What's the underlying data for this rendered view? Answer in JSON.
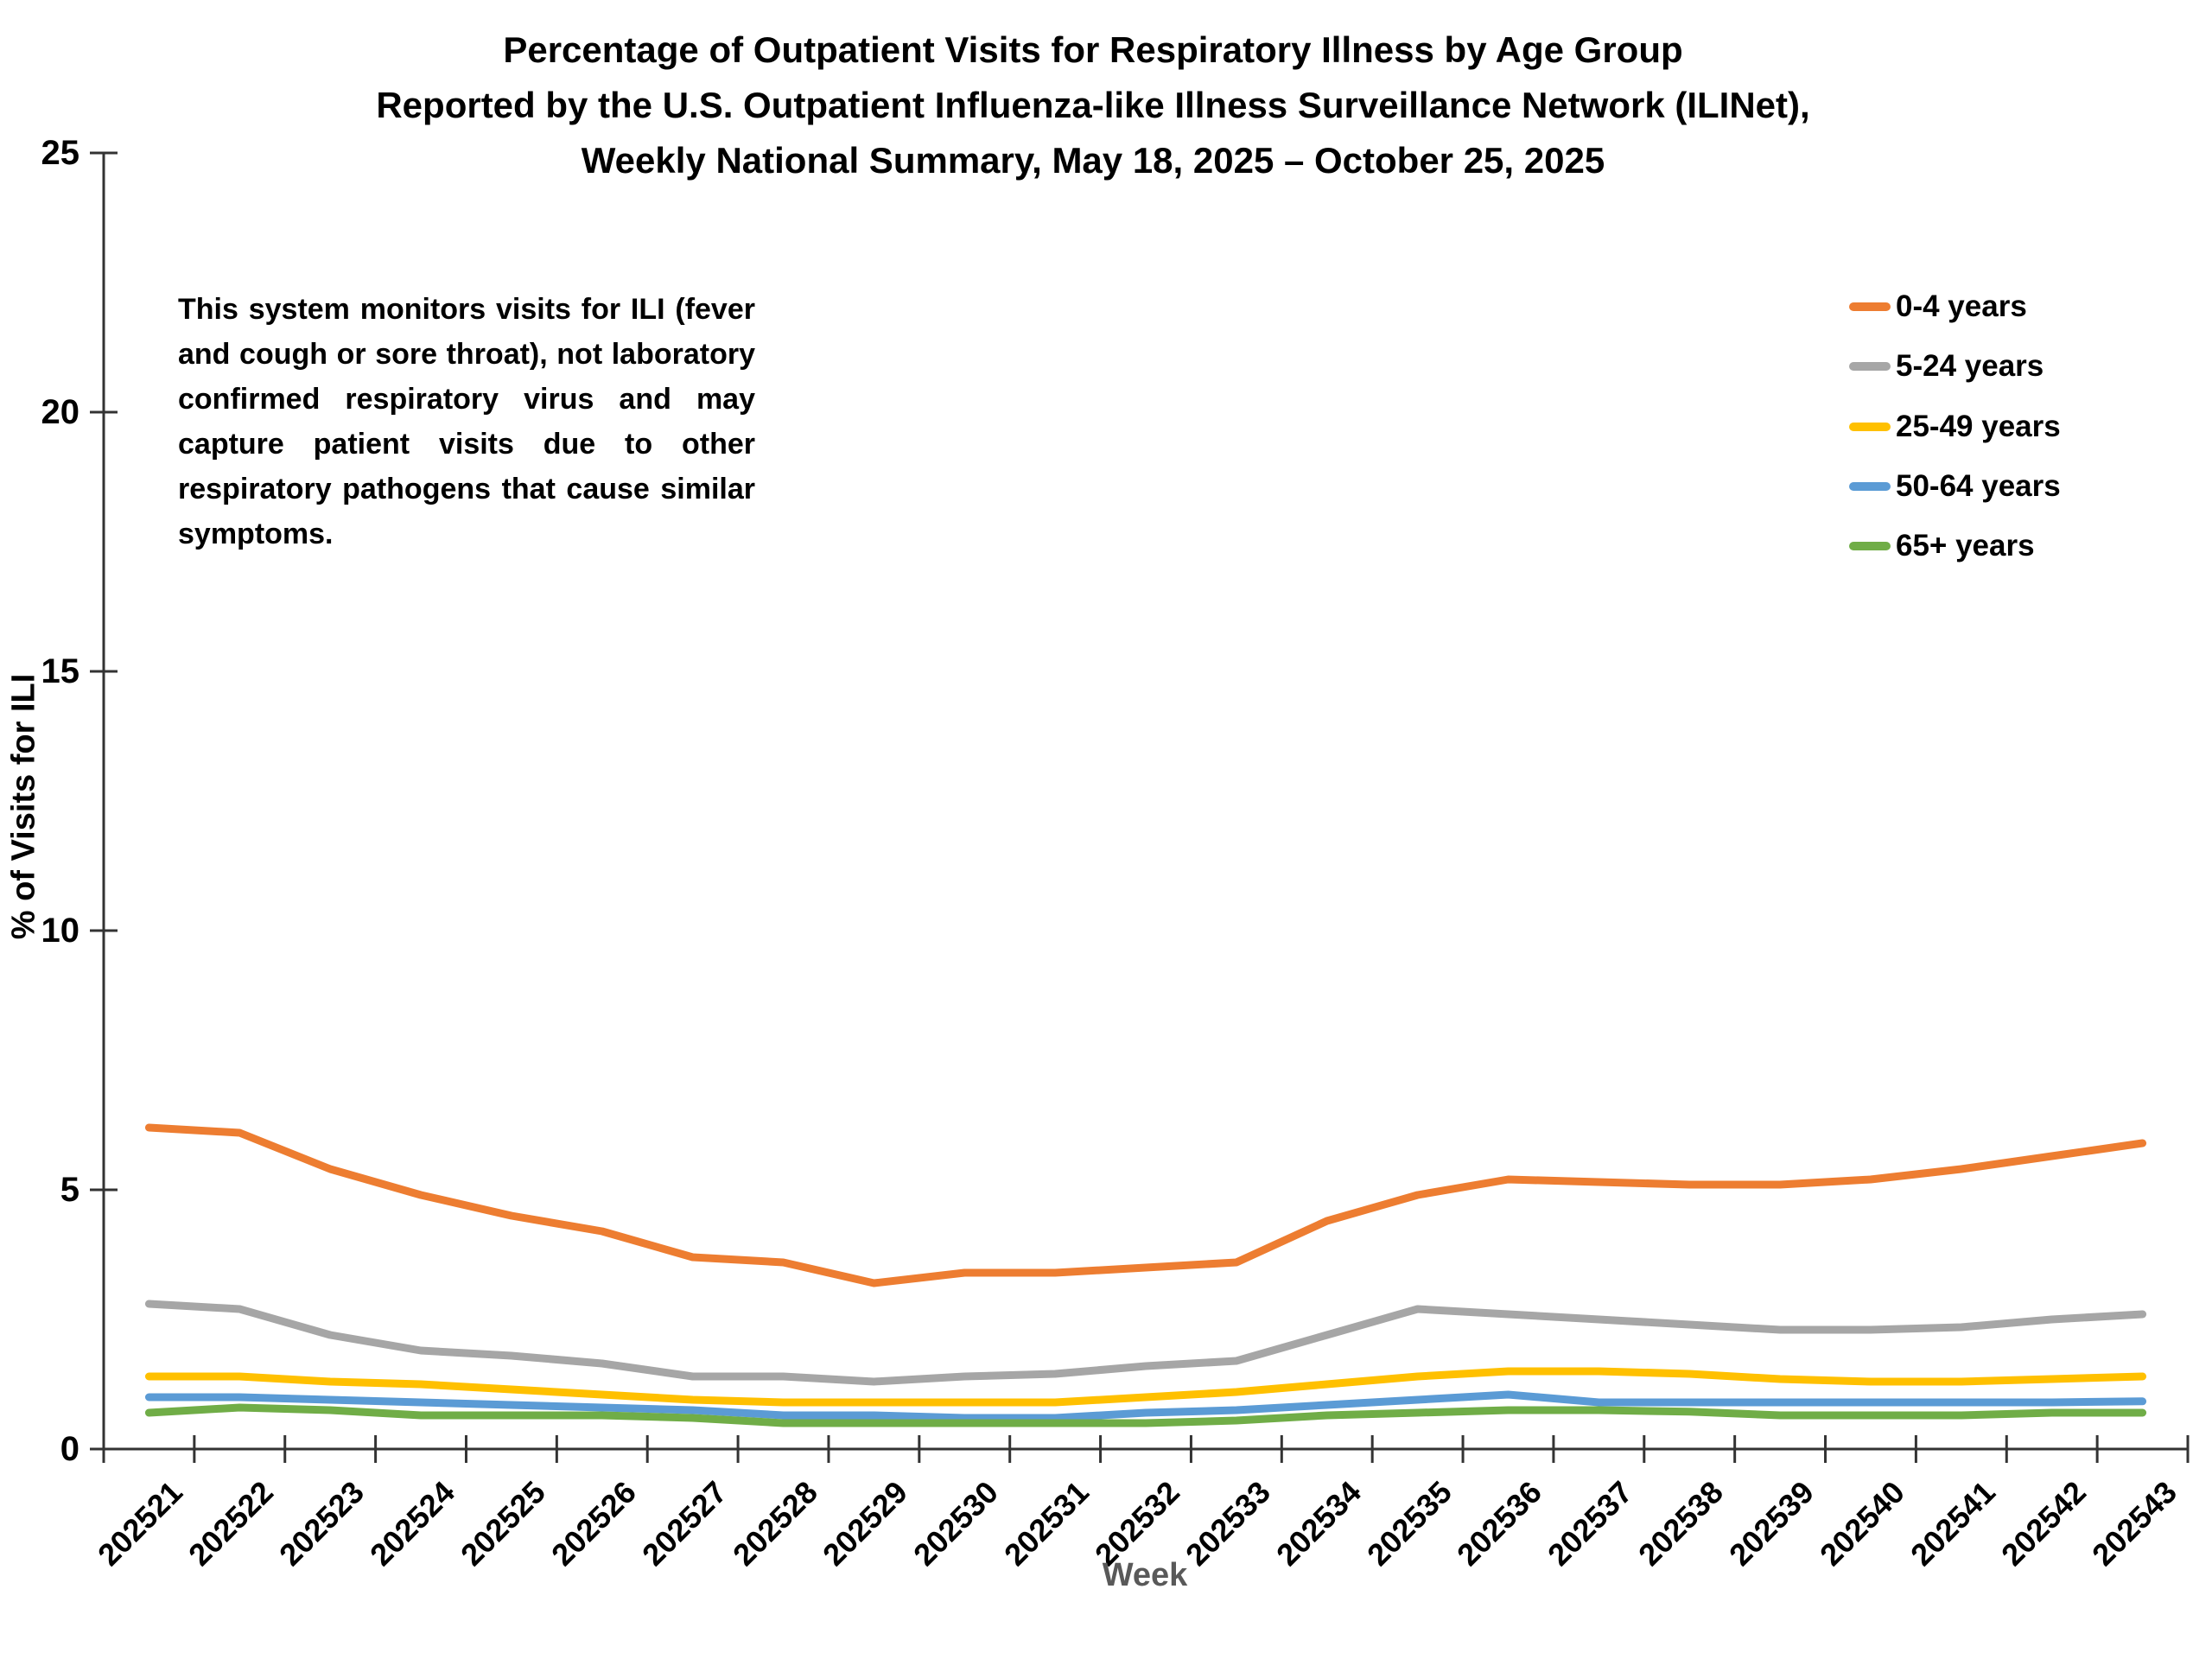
{
  "title": {
    "line1": "Percentage of Outpatient Visits for Respiratory Illness by Age Group",
    "line2": "Reported by the U.S. Outpatient Influenza-like Illness Surveillance Network (ILINet),",
    "line3": "Weekly National Summary, May 18, 2025 – October 25, 2025"
  },
  "annotation": "This system monitors visits for ILI (fever and cough or sore throat), not laboratory confirmed respiratory virus and may capture patient visits due to other respiratory pathogens that cause similar symptoms.",
  "colors": {
    "axis": "#333333",
    "tick_label": "#000000",
    "xlabel_color": "#595959"
  },
  "chart_data": {
    "type": "line",
    "title": "Percentage of Outpatient Visits for Respiratory Illness by Age Group Reported by the U.S. Outpatient Influenza-like Illness Surveillance Network (ILINet), Weekly National Summary, May 18, 2025 – October 25, 2025",
    "xlabel": "Week",
    "ylabel": "% of Visits for ILI",
    "ylim": [
      0,
      25
    ],
    "yticks": [
      0,
      5,
      10,
      15,
      20,
      25
    ],
    "grid": false,
    "legend_position": "right",
    "categories": [
      "202521",
      "202522",
      "202523",
      "202524",
      "202525",
      "202526",
      "202527",
      "202528",
      "202529",
      "202530",
      "202531",
      "202532",
      "202533",
      "202534",
      "202535",
      "202536",
      "202537",
      "202538",
      "202539",
      "202540",
      "202541",
      "202542",
      "202543"
    ],
    "series": [
      {
        "name": "0-4 years",
        "color": "#ED7D31",
        "values": [
          6.2,
          6.1,
          5.4,
          4.9,
          4.5,
          4.2,
          3.7,
          3.6,
          3.2,
          3.4,
          3.4,
          3.5,
          3.6,
          4.4,
          4.9,
          5.2,
          5.15,
          5.1,
          5.1,
          5.2,
          5.4,
          5.65,
          5.9
        ]
      },
      {
        "name": "5-24 years",
        "color": "#A6A6A6",
        "values": [
          2.8,
          2.7,
          2.2,
          1.9,
          1.8,
          1.65,
          1.4,
          1.4,
          1.3,
          1.4,
          1.45,
          1.6,
          1.7,
          2.2,
          2.7,
          2.6,
          2.5,
          2.4,
          2.3,
          2.3,
          2.35,
          2.5,
          2.6
        ]
      },
      {
        "name": "25-49 years",
        "color": "#FFC000",
        "values": [
          1.4,
          1.4,
          1.3,
          1.25,
          1.15,
          1.05,
          0.95,
          0.9,
          0.9,
          0.9,
          0.9,
          1.0,
          1.1,
          1.25,
          1.4,
          1.5,
          1.5,
          1.45,
          1.35,
          1.3,
          1.3,
          1.35,
          1.4
        ]
      },
      {
        "name": "50-64 years",
        "color": "#5B9BD5",
        "values": [
          1.0,
          1.0,
          0.95,
          0.9,
          0.85,
          0.8,
          0.75,
          0.65,
          0.65,
          0.6,
          0.6,
          0.7,
          0.75,
          0.85,
          0.95,
          1.05,
          0.9,
          0.9,
          0.9,
          0.9,
          0.9,
          0.9,
          0.92
        ]
      },
      {
        "name": "65+ years",
        "color": "#70AD47",
        "values": [
          0.7,
          0.8,
          0.75,
          0.65,
          0.65,
          0.65,
          0.6,
          0.5,
          0.5,
          0.5,
          0.5,
          0.5,
          0.55,
          0.65,
          0.7,
          0.75,
          0.75,
          0.72,
          0.65,
          0.65,
          0.65,
          0.7,
          0.7
        ]
      }
    ]
  }
}
